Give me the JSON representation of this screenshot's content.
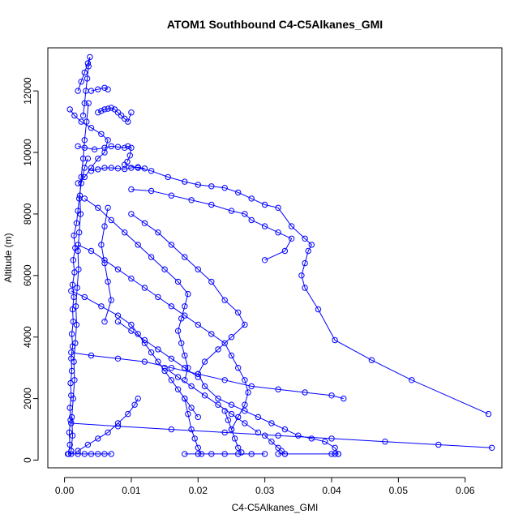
{
  "chart_data": {
    "type": "line",
    "title": "ATOM1 Southbound C4-C5Alkanes_GMI",
    "xlabel": "C4-C5Alkanes_GMI",
    "ylabel": "Altitude (m)",
    "xlim": [
      -0.0025,
      0.0655
    ],
    "ylim": [
      -250,
      13400
    ],
    "xticks": [
      0.0,
      0.01,
      0.02,
      0.03,
      0.04,
      0.05,
      0.06
    ],
    "xtick_labels": [
      "0.00",
      "0.01",
      "0.02",
      "0.03",
      "0.04",
      "0.05",
      "0.06"
    ],
    "yticks": [
      0,
      2000,
      4000,
      6000,
      8000,
      10000,
      12000
    ],
    "ytick_labels": [
      "0",
      "2000",
      "4000",
      "6000",
      "8000",
      "10000",
      "12000"
    ],
    "grid": false,
    "marker": "open-circle",
    "series_color": "#0000ff",
    "series": [
      {
        "x": [
          0.0006,
          0.0008,
          0.0007,
          0.0009,
          0.0008,
          0.001,
          0.0009,
          0.0011,
          0.001,
          0.0012,
          0.0011,
          0.0013,
          0.0012,
          0.0014,
          0.0012,
          0.0015,
          0.0013,
          0.0016,
          0.0014,
          0.0018,
          0.002,
          0.0022,
          0.0025,
          0.003,
          0.0035
        ],
        "y": [
          200,
          500,
          900,
          1300,
          1700,
          2100,
          2500,
          2900,
          3300,
          3700,
          4100,
          4500,
          4900,
          5300,
          5700,
          6100,
          6500,
          6900,
          7300,
          7700,
          8100,
          8500,
          9000,
          9500,
          9800
        ]
      },
      {
        "x": [
          0.001,
          0.0012,
          0.0011,
          0.0013,
          0.0015,
          0.0014,
          0.0016,
          0.0018,
          0.0017,
          0.0019,
          0.0021,
          0.002,
          0.0022,
          0.0024,
          0.0023,
          0.0025,
          0.0028,
          0.003,
          0.0033,
          0.0036
        ],
        "y": [
          300,
          800,
          1400,
          2000,
          2600,
          3200,
          3800,
          4400,
          5000,
          5600,
          6200,
          6800,
          7400,
          8000,
          8600,
          9200,
          9800,
          10400,
          11000,
          11600
        ]
      },
      {
        "x": [
          0.002,
          0.0025,
          0.003,
          0.0035,
          0.0038,
          0.0036,
          0.0034,
          0.0032,
          0.003,
          0.0028
        ],
        "y": [
          12000,
          12300,
          12600,
          12900,
          13100,
          12800,
          12400,
          12000,
          11600,
          11200
        ]
      },
      {
        "x": [
          0.0008,
          0.0015,
          0.0025,
          0.004,
          0.0055,
          0.0065,
          0.006,
          0.005,
          0.004,
          0.003,
          0.002
        ],
        "y": [
          11400,
          11200,
          11000,
          10800,
          10600,
          10400,
          10000,
          9800,
          9500,
          9200,
          9000
        ]
      },
      {
        "x": [
          0.004,
          0.005,
          0.006,
          0.0065
        ],
        "y": [
          12000,
          12050,
          12100,
          12050
        ]
      },
      {
        "x": [
          0.005,
          0.0055,
          0.006,
          0.0065,
          0.007,
          0.0075,
          0.008,
          0.0085,
          0.009,
          0.0095,
          0.01
        ],
        "y": [
          11300,
          11350,
          11400,
          11420,
          11450,
          11400,
          11300,
          11200,
          11100,
          11000,
          11300
        ]
      },
      {
        "x": [
          0.002,
          0.003,
          0.0045,
          0.006,
          0.007,
          0.008,
          0.009,
          0.0095,
          0.01,
          0.0098,
          0.0094
        ],
        "y": [
          10200,
          10150,
          10100,
          10150,
          10200,
          10180,
          10150,
          10200,
          10150,
          9900,
          9700
        ]
      },
      {
        "x": [
          0.004,
          0.005,
          0.006,
          0.007,
          0.008,
          0.009,
          0.01,
          0.011,
          0.012
        ],
        "y": [
          9400,
          9450,
          9500,
          9500,
          9480,
          9460,
          9500,
          9520,
          9480
        ]
      },
      {
        "x": [
          0.009,
          0.011,
          0.013,
          0.0155,
          0.018,
          0.02,
          0.022,
          0.024,
          0.026,
          0.028,
          0.03,
          0.032,
          0.034,
          0.036,
          0.037,
          0.0365,
          0.036,
          0.0355,
          0.036,
          0.038,
          0.0405,
          0.046,
          0.052,
          0.0635
        ],
        "y": [
          9600,
          9500,
          9400,
          9200,
          9050,
          8950,
          8900,
          8850,
          8700,
          8500,
          8300,
          8200,
          7600,
          7200,
          7000,
          6800,
          6400,
          6000,
          5600,
          4900,
          3900,
          3250,
          2600,
          1500
        ]
      },
      {
        "x": [
          0.01,
          0.013,
          0.016,
          0.019,
          0.022,
          0.025,
          0.027,
          0.028,
          0.03,
          0.032,
          0.034,
          0.033,
          0.03
        ],
        "y": [
          8800,
          8750,
          8600,
          8450,
          8300,
          8100,
          8000,
          7800,
          7600,
          7400,
          7200,
          6800,
          6500
        ]
      },
      {
        "x": [
          0.01,
          0.012,
          0.014,
          0.016,
          0.018,
          0.02,
          0.022,
          0.024,
          0.026,
          0.027,
          0.025,
          0.023,
          0.021,
          0.02,
          0.021,
          0.023,
          0.025,
          0.027,
          0.029,
          0.031,
          0.033,
          0.035,
          0.037,
          0.039,
          0.0405,
          0.041,
          0.0405
        ],
        "y": [
          8000,
          7700,
          7400,
          7000,
          6600,
          6200,
          5800,
          5200,
          4800,
          4400,
          4000,
          3600,
          3200,
          2800,
          2400,
          2000,
          1800,
          1600,
          1400,
          1200,
          1000,
          800,
          700,
          600,
          400,
          200,
          200
        ]
      },
      {
        "x": [
          0.003,
          0.005,
          0.007,
          0.009,
          0.011,
          0.013,
          0.015,
          0.017,
          0.0185,
          0.018,
          0.0175,
          0.017,
          0.0175,
          0.018,
          0.0185,
          0.018
        ],
        "y": [
          8500,
          8200,
          7800,
          7400,
          7000,
          6600,
          6200,
          5800,
          5400,
          5000,
          4600,
          4200,
          3800,
          3400,
          3000,
          2600
        ]
      },
      {
        "x": [
          0.002,
          0.004,
          0.006,
          0.008,
          0.01,
          0.012,
          0.014,
          0.016,
          0.018,
          0.02,
          0.022,
          0.024,
          0.025,
          0.026,
          0.027,
          0.0275,
          0.027,
          0.026,
          0.025
        ],
        "y": [
          7000,
          6800,
          6500,
          6200,
          5900,
          5600,
          5300,
          5000,
          4700,
          4400,
          4100,
          3800,
          3400,
          3000,
          2600,
          2200,
          1800,
          1400,
          1000
        ]
      },
      {
        "x": [
          0.001,
          0.003,
          0.0055,
          0.008,
          0.01,
          0.011,
          0.012,
          0.013,
          0.014,
          0.015,
          0.016,
          0.017,
          0.018,
          0.019,
          0.02
        ],
        "y": [
          5500,
          5300,
          5000,
          4700,
          4400,
          4100,
          3800,
          3500,
          3200,
          2900,
          2600,
          2300,
          2000,
          1700,
          1400
        ]
      },
      {
        "x": [
          0.001,
          0.004,
          0.008,
          0.012,
          0.016,
          0.02,
          0.024,
          0.028,
          0.032,
          0.036,
          0.04,
          0.0418
        ],
        "y": [
          3500,
          3400,
          3300,
          3200,
          3000,
          2800,
          2600,
          2400,
          2300,
          2200,
          2100,
          2000
        ]
      },
      {
        "x": [
          0.001,
          0.008,
          0.016,
          0.024,
          0.032,
          0.04,
          0.048,
          0.056,
          0.064
        ],
        "y": [
          1200,
          1100,
          1000,
          900,
          800,
          700,
          600,
          500,
          400
        ]
      },
      {
        "x": [
          0.002,
          0.0035,
          0.005,
          0.0065,
          0.008,
          0.0095,
          0.0105,
          0.011
        ],
        "y": [
          300,
          500,
          700,
          900,
          1200,
          1500,
          1800,
          2000
        ]
      },
      {
        "x": [
          0.018,
          0.0185,
          0.019,
          0.0195,
          0.02,
          0.0205
        ],
        "y": [
          2000,
          1500,
          1000,
          700,
          400,
          200
        ]
      },
      {
        "x": [
          0.024,
          0.0245,
          0.025,
          0.0255,
          0.026,
          0.0265
        ],
        "y": [
          1600,
          1300,
          1000,
          700,
          400,
          250
        ]
      },
      {
        "x": [
          0.03,
          0.031,
          0.032,
          0.0325,
          0.033
        ],
        "y": [
          800,
          600,
          400,
          300,
          200
        ]
      },
      {
        "x": [
          0.015,
          0.017,
          0.019,
          0.021,
          0.023,
          0.025,
          0.027,
          0.029
        ],
        "y": [
          3000,
          2700,
          2400,
          2100,
          1800,
          1500,
          1200,
          900
        ]
      },
      {
        "x": [
          0.008,
          0.01,
          0.012,
          0.014,
          0.016,
          0.018,
          0.02
        ],
        "y": [
          4500,
          4200,
          3900,
          3600,
          3300,
          3000,
          2700
        ]
      },
      {
        "x": [
          0.006,
          0.007,
          0.0065,
          0.006,
          0.0055,
          0.006,
          0.0065
        ],
        "y": [
          4500,
          5200,
          5800,
          6400,
          7000,
          7600,
          8200
        ]
      },
      {
        "x": [
          0.0005,
          0.001,
          0.002,
          0.003,
          0.004,
          0.005,
          0.006,
          0.007
        ],
        "y": [
          200,
          200,
          200,
          200,
          200,
          200,
          200,
          200
        ]
      },
      {
        "x": [
          0.018,
          0.02,
          0.022,
          0.024,
          0.026,
          0.028,
          0.03
        ],
        "y": [
          200,
          200,
          200,
          200,
          200,
          200,
          200
        ]
      },
      {
        "x": [
          0.032,
          0.033,
          0.04,
          0.041
        ],
        "y": [
          200,
          200,
          200,
          200
        ]
      }
    ]
  }
}
